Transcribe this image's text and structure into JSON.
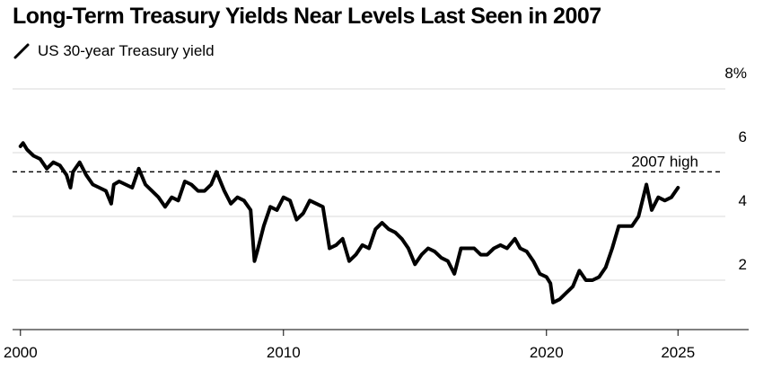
{
  "chart_data": {
    "type": "line",
    "title": "Long-Term Treasury Yields Near Levels Last Seen in 2007",
    "xlabel": "",
    "ylabel": "",
    "ylim": [
      0,
      8
    ],
    "xlim": [
      1999.7,
      2026.8
    ],
    "y_ticks": [
      2,
      4,
      6,
      8
    ],
    "y_tick_labels": [
      "2",
      "4",
      "6",
      "8%"
    ],
    "x_ticks": [
      2000,
      2010,
      2020,
      2025
    ],
    "x_tick_labels": [
      "2000",
      "2010",
      "2020",
      "2025"
    ],
    "grid": "horizontal",
    "legend_position": "top-left",
    "series": [
      {
        "name": "US 30-year Treasury yield",
        "color": "#000000",
        "x": [
          2000.0,
          2000.1,
          2000.25,
          2000.5,
          2000.75,
          2001.0,
          2001.25,
          2001.5,
          2001.75,
          2001.9,
          2002.0,
          2002.25,
          2002.5,
          2002.75,
          2003.0,
          2003.25,
          2003.45,
          2003.55,
          2003.75,
          2004.0,
          2004.25,
          2004.5,
          2004.75,
          2005.0,
          2005.25,
          2005.5,
          2005.75,
          2006.0,
          2006.25,
          2006.5,
          2006.75,
          2007.0,
          2007.25,
          2007.45,
          2007.75,
          2008.0,
          2008.25,
          2008.5,
          2008.75,
          2008.9,
          2009.0,
          2009.25,
          2009.5,
          2009.75,
          2010.0,
          2010.25,
          2010.5,
          2010.75,
          2011.0,
          2011.25,
          2011.5,
          2011.75,
          2012.0,
          2012.25,
          2012.5,
          2012.75,
          2013.0,
          2013.25,
          2013.5,
          2013.75,
          2014.0,
          2014.25,
          2014.5,
          2014.75,
          2015.0,
          2015.25,
          2015.5,
          2015.75,
          2016.0,
          2016.25,
          2016.5,
          2016.75,
          2017.0,
          2017.25,
          2017.5,
          2017.75,
          2018.0,
          2018.25,
          2018.5,
          2018.8,
          2019.0,
          2019.25,
          2019.5,
          2019.75,
          2020.0,
          2020.15,
          2020.25,
          2020.5,
          2020.75,
          2021.0,
          2021.25,
          2021.5,
          2021.75,
          2022.0,
          2022.25,
          2022.5,
          2022.75,
          2023.0,
          2023.25,
          2023.5,
          2023.8,
          2024.0,
          2024.25,
          2024.5,
          2024.75,
          2025.0
        ],
        "y": [
          6.2,
          6.3,
          6.1,
          5.9,
          5.8,
          5.5,
          5.7,
          5.6,
          5.3,
          4.9,
          5.4,
          5.7,
          5.3,
          5.0,
          4.9,
          4.8,
          4.4,
          5.0,
          5.1,
          5.0,
          4.9,
          5.5,
          5.0,
          4.8,
          4.6,
          4.3,
          4.6,
          4.5,
          5.1,
          5.0,
          4.8,
          4.8,
          5.0,
          5.4,
          4.8,
          4.4,
          4.6,
          4.5,
          4.2,
          2.6,
          2.9,
          3.7,
          4.3,
          4.2,
          4.6,
          4.5,
          3.9,
          4.1,
          4.5,
          4.4,
          4.3,
          3.0,
          3.1,
          3.3,
          2.6,
          2.8,
          3.1,
          3.0,
          3.6,
          3.8,
          3.6,
          3.5,
          3.3,
          3.0,
          2.5,
          2.8,
          3.0,
          2.9,
          2.7,
          2.6,
          2.2,
          3.0,
          3.0,
          3.0,
          2.8,
          2.8,
          3.0,
          3.1,
          3.0,
          3.3,
          3.0,
          2.9,
          2.6,
          2.2,
          2.1,
          1.9,
          1.3,
          1.4,
          1.6,
          1.8,
          2.3,
          2.0,
          2.0,
          2.1,
          2.4,
          3.0,
          3.7,
          3.7,
          3.7,
          4.0,
          5.0,
          4.2,
          4.6,
          4.5,
          4.6,
          4.9
        ]
      }
    ],
    "reference_lines": [
      {
        "y": 5.4,
        "label": "2007 high",
        "style": "dashed"
      }
    ]
  }
}
